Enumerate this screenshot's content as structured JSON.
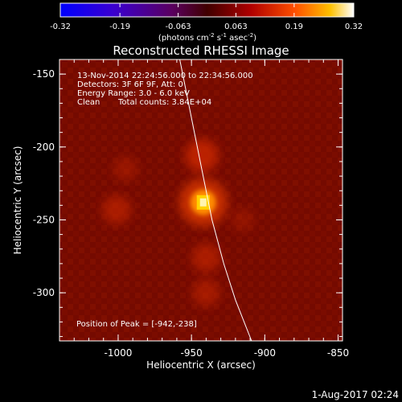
{
  "colorbar": {
    "ticks": [
      "-0.32",
      "-0.19",
      "-0.063",
      "0.063",
      "0.19",
      "0.32"
    ],
    "tick_values": [
      -0.32,
      -0.19,
      -0.063,
      0.063,
      0.19,
      0.32
    ],
    "range": [
      -0.32,
      0.32
    ],
    "unit_label": "(photons cm",
    "unit_exp1": "-2",
    "unit_mid": " s",
    "unit_exp2": "-1",
    "unit_mid2": " asec",
    "unit_exp3": "-2",
    "unit_close": ")"
  },
  "chart_data": {
    "type": "heatmap",
    "title": "Reconstructed RHESSI Image",
    "xlabel": "Heliocentric X (arcsec)",
    "ylabel": "Heliocentric Y (arcsec)",
    "xlim": [
      -1040,
      -847
    ],
    "ylim": [
      -333,
      -140
    ],
    "x_ticks": [
      -1000,
      -950,
      -900,
      -850
    ],
    "x_tick_labels": [
      "-1000",
      "-950",
      "-900",
      "-850"
    ],
    "y_ticks": [
      -150,
      -200,
      -250,
      -300
    ],
    "y_tick_labels": [
      "-150",
      "-200",
      "-250",
      "-300"
    ],
    "peak": {
      "x": -942,
      "y": -238,
      "value": 0.32
    },
    "secondary_sources": [
      {
        "x": -943,
        "y": -206,
        "value": 0.12
      },
      {
        "x": -1001,
        "y": -243,
        "value": 0.09
      },
      {
        "x": -940,
        "y": -276,
        "value": 0.09
      },
      {
        "x": -940,
        "y": -300,
        "value": 0.08
      },
      {
        "x": -995,
        "y": -215,
        "value": 0.06
      },
      {
        "x": -915,
        "y": -250,
        "value": 0.05
      }
    ],
    "limb_curve": [
      {
        "x": -958,
        "y": -140
      },
      {
        "x": -950,
        "y": -180
      },
      {
        "x": -942,
        "y": -220
      },
      {
        "x": -936,
        "y": -250
      },
      {
        "x": -928,
        "y": -280
      },
      {
        "x": -920,
        "y": -305
      },
      {
        "x": -909,
        "y": -333
      }
    ],
    "colormap": "red-temperature"
  },
  "annotations": {
    "line1": "13-Nov-2014 22:24:56.000 to 22:34:56.000",
    "line2": "Detectors: 3F 6F 9F, Att: 0",
    "line3": "Energy Range: 3.0 - 6.0 keV",
    "line4_a": "Clean",
    "line4_b": "Total counts: 3.84E+04",
    "peak_label": "Position of Peak = [-942,-238]"
  },
  "footer": {
    "timestamp": "1-Aug-2017 02:24"
  }
}
